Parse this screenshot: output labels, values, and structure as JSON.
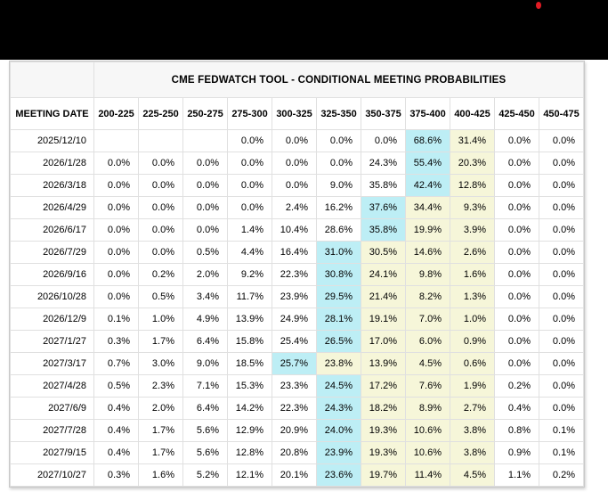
{
  "page": {
    "background_color": "#ffffff",
    "top_bar_color": "#000000",
    "red_dot_color": "#e01b24"
  },
  "table": {
    "title": "CME FEDWATCH TOOL - CONDITIONAL MEETING PROBABILITIES",
    "date_column_header": "MEETING DATE",
    "rate_column_headers": [
      "200-225",
      "225-250",
      "250-275",
      "275-300",
      "300-325",
      "325-350",
      "350-375",
      "375-400",
      "400-425",
      "425-450",
      "450-475"
    ],
    "highlight_colors": {
      "blue": "#bdeef5",
      "yellow": "#f6f6d9"
    },
    "rows": [
      {
        "date": "2025/12/10",
        "values": [
          "",
          "",
          "",
          "0.0%",
          "0.0%",
          "0.0%",
          "0.0%",
          "68.6%",
          "31.4%",
          "0.0%",
          "0.0%"
        ],
        "highlights": [
          "",
          "",
          "",
          "",
          "",
          "",
          "",
          "blue",
          "yellow",
          "",
          ""
        ]
      },
      {
        "date": "2026/1/28",
        "values": [
          "0.0%",
          "0.0%",
          "0.0%",
          "0.0%",
          "0.0%",
          "0.0%",
          "24.3%",
          "55.4%",
          "20.3%",
          "0.0%",
          "0.0%"
        ],
        "highlights": [
          "",
          "",
          "",
          "",
          "",
          "",
          "",
          "blue",
          "yellow",
          "",
          ""
        ]
      },
      {
        "date": "2026/3/18",
        "values": [
          "0.0%",
          "0.0%",
          "0.0%",
          "0.0%",
          "0.0%",
          "9.0%",
          "35.8%",
          "42.4%",
          "12.8%",
          "0.0%",
          "0.0%"
        ],
        "highlights": [
          "",
          "",
          "",
          "",
          "",
          "",
          "",
          "blue",
          "yellow",
          "",
          ""
        ]
      },
      {
        "date": "2026/4/29",
        "values": [
          "0.0%",
          "0.0%",
          "0.0%",
          "0.0%",
          "2.4%",
          "16.2%",
          "37.6%",
          "34.4%",
          "9.3%",
          "0.0%",
          "0.0%"
        ],
        "highlights": [
          "",
          "",
          "",
          "",
          "",
          "",
          "blue",
          "yellow",
          "yellow",
          "",
          ""
        ]
      },
      {
        "date": "2026/6/17",
        "values": [
          "0.0%",
          "0.0%",
          "0.0%",
          "1.4%",
          "10.4%",
          "28.6%",
          "35.8%",
          "19.9%",
          "3.9%",
          "0.0%",
          "0.0%"
        ],
        "highlights": [
          "",
          "",
          "",
          "",
          "",
          "",
          "blue",
          "yellow",
          "yellow",
          "",
          ""
        ]
      },
      {
        "date": "2026/7/29",
        "values": [
          "0.0%",
          "0.0%",
          "0.5%",
          "4.4%",
          "16.4%",
          "31.0%",
          "30.5%",
          "14.6%",
          "2.6%",
          "0.0%",
          "0.0%"
        ],
        "highlights": [
          "",
          "",
          "",
          "",
          "",
          "blue",
          "yellow",
          "yellow",
          "yellow",
          "",
          ""
        ]
      },
      {
        "date": "2026/9/16",
        "values": [
          "0.0%",
          "0.2%",
          "2.0%",
          "9.2%",
          "22.3%",
          "30.8%",
          "24.1%",
          "9.8%",
          "1.6%",
          "0.0%",
          "0.0%"
        ],
        "highlights": [
          "",
          "",
          "",
          "",
          "",
          "blue",
          "yellow",
          "yellow",
          "yellow",
          "",
          ""
        ]
      },
      {
        "date": "2026/10/28",
        "values": [
          "0.0%",
          "0.5%",
          "3.4%",
          "11.7%",
          "23.9%",
          "29.5%",
          "21.4%",
          "8.2%",
          "1.3%",
          "0.0%",
          "0.0%"
        ],
        "highlights": [
          "",
          "",
          "",
          "",
          "",
          "blue",
          "yellow",
          "yellow",
          "yellow",
          "",
          ""
        ]
      },
      {
        "date": "2026/12/9",
        "values": [
          "0.1%",
          "1.0%",
          "4.9%",
          "13.9%",
          "24.9%",
          "28.1%",
          "19.1%",
          "7.0%",
          "1.0%",
          "0.0%",
          "0.0%"
        ],
        "highlights": [
          "",
          "",
          "",
          "",
          "",
          "blue",
          "yellow",
          "yellow",
          "yellow",
          "",
          ""
        ]
      },
      {
        "date": "2027/1/27",
        "values": [
          "0.3%",
          "1.7%",
          "6.4%",
          "15.8%",
          "25.4%",
          "26.5%",
          "17.0%",
          "6.0%",
          "0.9%",
          "0.0%",
          "0.0%"
        ],
        "highlights": [
          "",
          "",
          "",
          "",
          "",
          "blue",
          "yellow",
          "yellow",
          "yellow",
          "",
          ""
        ]
      },
      {
        "date": "2027/3/17",
        "values": [
          "0.7%",
          "3.0%",
          "9.0%",
          "18.5%",
          "25.7%",
          "23.8%",
          "13.9%",
          "4.5%",
          "0.6%",
          "0.0%",
          "0.0%"
        ],
        "highlights": [
          "",
          "",
          "",
          "",
          "blue",
          "yellow",
          "yellow",
          "yellow",
          "yellow",
          "",
          ""
        ]
      },
      {
        "date": "2027/4/28",
        "values": [
          "0.5%",
          "2.3%",
          "7.1%",
          "15.3%",
          "23.3%",
          "24.5%",
          "17.2%",
          "7.6%",
          "1.9%",
          "0.2%",
          "0.0%"
        ],
        "highlights": [
          "",
          "",
          "",
          "",
          "",
          "blue",
          "yellow",
          "yellow",
          "yellow",
          "",
          ""
        ]
      },
      {
        "date": "2027/6/9",
        "values": [
          "0.4%",
          "2.0%",
          "6.4%",
          "14.2%",
          "22.3%",
          "24.3%",
          "18.2%",
          "8.9%",
          "2.7%",
          "0.4%",
          "0.0%"
        ],
        "highlights": [
          "",
          "",
          "",
          "",
          "",
          "blue",
          "yellow",
          "yellow",
          "yellow",
          "",
          ""
        ]
      },
      {
        "date": "2027/7/28",
        "values": [
          "0.4%",
          "1.7%",
          "5.6%",
          "12.9%",
          "20.9%",
          "24.0%",
          "19.3%",
          "10.6%",
          "3.8%",
          "0.8%",
          "0.1%"
        ],
        "highlights": [
          "",
          "",
          "",
          "",
          "",
          "blue",
          "yellow",
          "yellow",
          "yellow",
          "",
          ""
        ]
      },
      {
        "date": "2027/9/15",
        "values": [
          "0.4%",
          "1.7%",
          "5.6%",
          "12.8%",
          "20.8%",
          "23.9%",
          "19.3%",
          "10.6%",
          "3.8%",
          "0.9%",
          "0.1%"
        ],
        "highlights": [
          "",
          "",
          "",
          "",
          "",
          "blue",
          "yellow",
          "yellow",
          "yellow",
          "",
          ""
        ]
      },
      {
        "date": "2027/10/27",
        "values": [
          "0.3%",
          "1.6%",
          "5.2%",
          "12.1%",
          "20.1%",
          "23.6%",
          "19.7%",
          "11.4%",
          "4.5%",
          "1.1%",
          "0.2%"
        ],
        "highlights": [
          "",
          "",
          "",
          "",
          "",
          "blue",
          "yellow",
          "yellow",
          "yellow",
          "",
          ""
        ]
      }
    ]
  }
}
